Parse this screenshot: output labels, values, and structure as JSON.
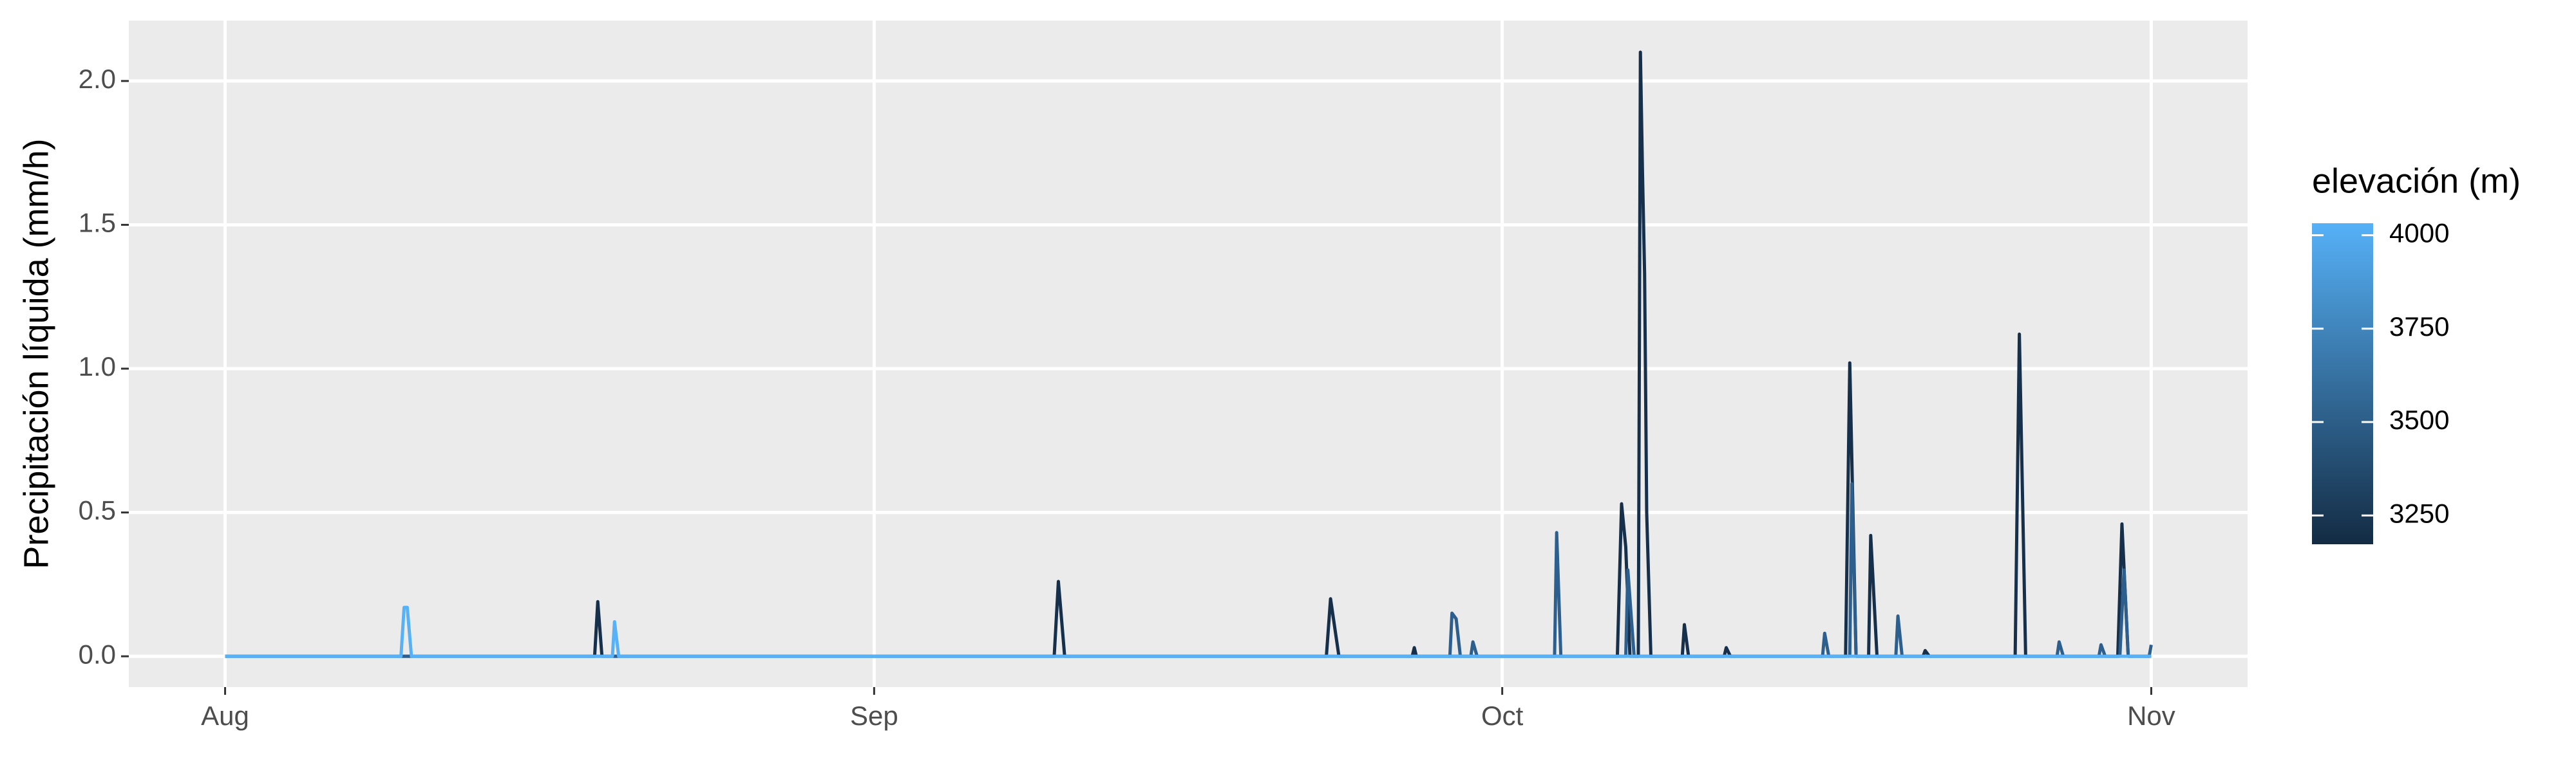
{
  "chart_data": {
    "type": "line",
    "y_label": "Precipitación líquida (mm/h)",
    "xlim": [
      -4.6,
      96.6
    ],
    "xticks": [
      {
        "value": 0,
        "label": "Aug"
      },
      {
        "value": 31,
        "label": "Sep"
      },
      {
        "value": 61,
        "label": "Oct"
      },
      {
        "value": 92,
        "label": "Nov"
      }
    ],
    "ylim": [
      -0.107,
      2.21
    ],
    "yticks": [
      {
        "value": 0,
        "label": "0.0"
      },
      {
        "value": 0.5,
        "label": "0.5"
      },
      {
        "value": 1,
        "label": "1.0"
      },
      {
        "value": 1.5,
        "label": "1.5"
      },
      {
        "value": 2,
        "label": "2.0"
      }
    ],
    "grid": true,
    "legend": {
      "title": "elevación (m)",
      "lim": [
        3173,
        4032
      ],
      "colors": [
        "#132B43",
        "#56B1F7"
      ],
      "ticks": [
        3250,
        3500,
        3750,
        4000
      ]
    },
    "series": [
      {
        "elevation": 3200,
        "color": "#16304B",
        "x": [
          0,
          17.65,
          17.8,
          18.0,
          39.6,
          39.8,
          40.1,
          52.6,
          52.8,
          53.2,
          56.7,
          56.8,
          56.9,
          66.5,
          66.7,
          66.9,
          67.1,
          67.5,
          67.6,
          67.7,
          67.8,
          67.9,
          68.1,
          69.6,
          69.7,
          69.9,
          71.6,
          71.7,
          71.9,
          77.4,
          77.6,
          77.9,
          78.5,
          78.6,
          78.9,
          81.1,
          81.2,
          81.4,
          85.5,
          85.7,
          86.0,
          90.4,
          90.6,
          90.9,
          92
        ],
        "values": [
          0,
          0,
          0.19,
          0,
          0,
          0.26,
          0,
          0,
          0.2,
          0,
          0,
          0.03,
          0,
          0,
          0.53,
          0.38,
          0,
          0,
          2.1,
          1.68,
          1.33,
          0.5,
          0,
          0,
          0.11,
          0,
          0,
          0.03,
          0,
          0,
          1.02,
          0,
          0,
          0.42,
          0,
          0,
          0.02,
          0,
          0,
          1.12,
          0,
          0,
          0.46,
          0,
          0
        ]
      },
      {
        "elevation": 3550,
        "color": "#2D5F8E",
        "x": [
          0,
          58.5,
          58.6,
          58.8,
          59.0,
          59.5,
          59.6,
          59.8,
          63.5,
          63.6,
          63.8,
          66.9,
          67.0,
          67.3,
          76.3,
          76.4,
          76.6,
          77.6,
          77.7,
          77.9,
          79.8,
          79.9,
          80.1,
          87.5,
          87.6,
          87.8,
          89.5,
          89.6,
          89.8,
          90.5,
          90.7,
          90.9,
          91.9,
          92.0
        ],
        "values": [
          0,
          0,
          0.15,
          0.13,
          0,
          0,
          0.05,
          0,
          0,
          0.43,
          0,
          0,
          0.3,
          0,
          0,
          0.08,
          0,
          0,
          0.6,
          0,
          0,
          0.14,
          0,
          0,
          0.05,
          0,
          0,
          0.04,
          0,
          0,
          0.3,
          0,
          0,
          0.04
        ]
      },
      {
        "elevation": 4030,
        "color": "#56B1F7",
        "x": [
          0,
          8.4,
          8.55,
          8.7,
          8.9,
          18.5,
          18.6,
          18.8,
          92
        ],
        "values": [
          0,
          0,
          0.17,
          0.17,
          0,
          0,
          0.12,
          0,
          0
        ]
      }
    ]
  }
}
